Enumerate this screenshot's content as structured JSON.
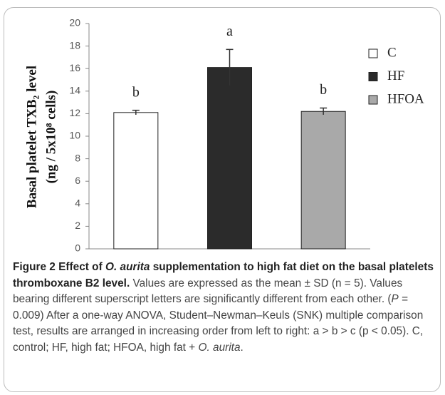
{
  "chart_data": {
    "type": "bar",
    "ylabel_lines": [
      "Basal platelet TXB₂ level",
      "(ng / 5x10⁸ cells)"
    ],
    "categories": [
      "C",
      "HF",
      "HFOA"
    ],
    "values": [
      12.1,
      16.1,
      12.2
    ],
    "errors": [
      0.2,
      1.6,
      0.3
    ],
    "annotations": [
      "b",
      "a",
      "b"
    ],
    "colors": [
      "#ffffff",
      "#2b2b2b",
      "#a9a9a9"
    ],
    "ylim": [
      0,
      20
    ],
    "yticks": [
      0,
      2,
      4,
      6,
      8,
      10,
      12,
      14,
      16,
      18,
      20
    ],
    "legend": "right",
    "caption": {
      "title_parts": [
        "Figure 2 Effect of ",
        "O. aurita",
        " supplementation to high fat diet on the basal platelets thromboxane B2 level."
      ],
      "body_parts": [
        " Values are expressed as the mean ± SD (n = 5). Values bearing different superscript letters are significantly different from each other. (",
        "P",
        " = 0.009) After a one-way ANOVA, Student–Newman–Keuls (SNK) multiple comparison test, results are arranged in increasing order from left to right: a > b > c (p < 0.05). C, control; HF, high fat; HFOA, high fat + ",
        "O. aurita",
        "."
      ]
    }
  }
}
